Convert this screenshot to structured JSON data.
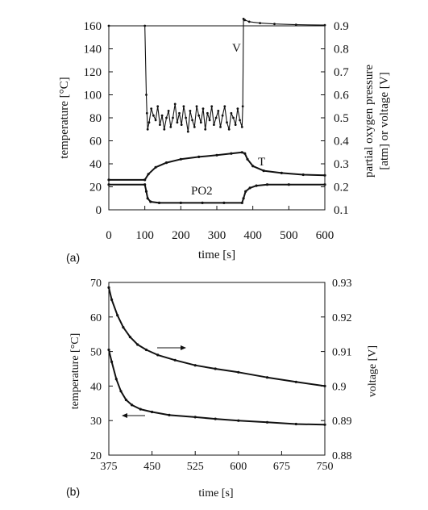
{
  "chart_data": [
    {
      "type": "line",
      "panel_label": "(a)",
      "xlabel": "time [s]",
      "ylabel_left": "temperature [°C]",
      "ylabel_right_line1": "partial oxygen pressure",
      "ylabel_right_line2": "[atm] or voltage [V]",
      "xlim": [
        0,
        600
      ],
      "ylim_left": [
        0,
        160
      ],
      "ylim_right": [
        0.1,
        0.9
      ],
      "x_ticks": [
        0,
        100,
        200,
        300,
        400,
        500,
        600
      ],
      "y_left_ticks": [
        0,
        20,
        40,
        60,
        80,
        100,
        120,
        140,
        160
      ],
      "y_right_ticks": [
        0.1,
        0.2,
        0.3,
        0.4,
        0.5,
        0.6,
        0.7,
        0.8,
        0.9
      ],
      "annotations": {
        "V": "V",
        "T": "T",
        "PO2": "PO2"
      },
      "series": [
        {
          "name": "V",
          "axis": "right",
          "x": [
            0,
            100,
            104,
            106,
            108,
            112,
            118,
            124,
            130,
            136,
            142,
            148,
            154,
            160,
            166,
            172,
            178,
            184,
            190,
            196,
            202,
            208,
            214,
            220,
            226,
            232,
            238,
            244,
            250,
            256,
            262,
            268,
            274,
            280,
            286,
            292,
            298,
            304,
            310,
            316,
            322,
            328,
            334,
            340,
            346,
            352,
            358,
            364,
            370,
            372,
            374,
            378,
            390,
            420,
            460,
            520,
            600
          ],
          "y": [
            0.9,
            0.9,
            0.6,
            0.52,
            0.45,
            0.48,
            0.54,
            0.51,
            0.49,
            0.55,
            0.47,
            0.51,
            0.45,
            0.5,
            0.53,
            0.46,
            0.5,
            0.56,
            0.48,
            0.52,
            0.47,
            0.55,
            0.5,
            0.44,
            0.53,
            0.49,
            0.46,
            0.55,
            0.51,
            0.48,
            0.54,
            0.45,
            0.52,
            0.49,
            0.55,
            0.47,
            0.5,
            0.53,
            0.46,
            0.51,
            0.55,
            0.48,
            0.45,
            0.52,
            0.5,
            0.47,
            0.54,
            0.49,
            0.46,
            0.55,
            0.93,
            0.925,
            0.918,
            0.912,
            0.908,
            0.905,
            0.903
          ]
        },
        {
          "name": "T",
          "axis": "left",
          "x": [
            0,
            100,
            110,
            130,
            160,
            200,
            250,
            300,
            340,
            370,
            378,
            385,
            400,
            430,
            480,
            540,
            600
          ],
          "y": [
            26,
            26,
            31,
            37,
            41,
            44,
            46,
            47.5,
            49,
            50,
            49,
            44,
            38,
            34,
            32,
            30.5,
            30
          ]
        },
        {
          "name": "PO2",
          "axis": "right",
          "x": [
            0,
            100,
            104,
            108,
            116,
            140,
            200,
            260,
            320,
            370,
            374,
            380,
            392,
            410,
            440,
            500,
            600
          ],
          "y": [
            0.21,
            0.21,
            0.18,
            0.15,
            0.135,
            0.13,
            0.13,
            0.13,
            0.13,
            0.13,
            0.15,
            0.18,
            0.195,
            0.205,
            0.21,
            0.21,
            0.21
          ]
        }
      ]
    },
    {
      "type": "line",
      "panel_label": "(b)",
      "xlabel": "time [s]",
      "ylabel_left": "temperature [°C]",
      "ylabel_right": "voltage [V]",
      "xlim": [
        375,
        750
      ],
      "ylim_left": [
        20,
        70
      ],
      "ylim_right": [
        0.88,
        0.93
      ],
      "x_ticks": [
        375,
        450,
        525,
        600,
        675,
        750
      ],
      "y_left_ticks": [
        20,
        30,
        40,
        50,
        60,
        70
      ],
      "y_right_ticks": [
        0.88,
        0.89,
        0.9,
        0.91,
        0.92,
        0.93
      ],
      "arrows": {
        "voltage": "right",
        "temperature": "left"
      },
      "series": [
        {
          "name": "voltage",
          "axis": "right",
          "x": [
            375,
            380,
            390,
            400,
            412,
            425,
            440,
            460,
            490,
            525,
            560,
            600,
            650,
            700,
            750
          ],
          "y": [
            0.9285,
            0.925,
            0.9205,
            0.917,
            0.9142,
            0.912,
            0.9105,
            0.909,
            0.9075,
            0.906,
            0.905,
            0.904,
            0.9025,
            0.9012,
            0.9
          ],
          "markers": "dots"
        },
        {
          "name": "temperature",
          "axis": "left",
          "x": [
            375,
            380,
            388,
            396,
            405,
            415,
            430,
            450,
            480,
            525,
            560,
            600,
            650,
            700,
            750
          ],
          "y": [
            50.5,
            47,
            42,
            38.5,
            36,
            34.5,
            33.3,
            32.5,
            31.6,
            31,
            30.5,
            30,
            29.5,
            29,
            28.8
          ],
          "markers": "dots"
        }
      ]
    }
  ]
}
